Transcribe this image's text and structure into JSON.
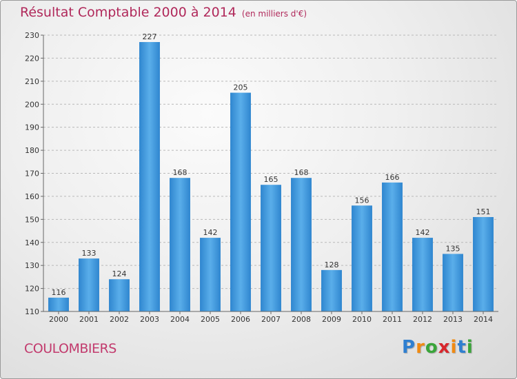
{
  "header": {
    "title": "Résultat Comptable 2000 à 2014",
    "subtitle": "(en milliers d'€)"
  },
  "commune": "COULOMBIERS",
  "logo": {
    "letters": [
      "P",
      "r",
      "o",
      "x",
      "i",
      "t",
      "i"
    ],
    "colors": [
      "#2f7fd0",
      "#f08a12",
      "#3aa53a",
      "#d8262c",
      "#f08a12",
      "#2f7fd0",
      "#3aa53a"
    ]
  },
  "chart_data": {
    "type": "bar",
    "title": "Résultat Comptable 2000 à 2014",
    "subtitle": "(en milliers d'€)",
    "xlabel": "",
    "ylabel": "",
    "categories": [
      "2000",
      "2001",
      "2002",
      "2003",
      "2004",
      "2005",
      "2006",
      "2007",
      "2008",
      "2009",
      "2010",
      "2011",
      "2012",
      "2013",
      "2014"
    ],
    "values": [
      116,
      133,
      124,
      227,
      168,
      142,
      205,
      165,
      168,
      128,
      156,
      166,
      142,
      135,
      151
    ],
    "ylim": [
      110,
      230
    ],
    "yticks": [
      110,
      120,
      130,
      140,
      150,
      160,
      170,
      180,
      190,
      200,
      210,
      220,
      230
    ],
    "grid": true,
    "bar_color": "#3f95db",
    "label_color": "#333333",
    "grid_color": "#b8b8b8"
  }
}
